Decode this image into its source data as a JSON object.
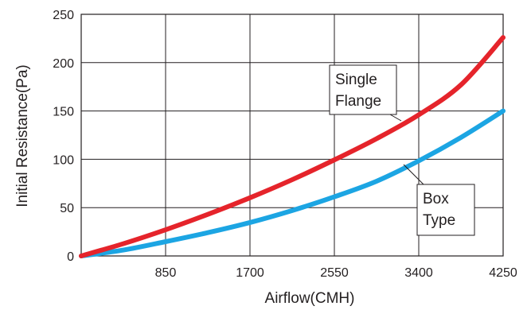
{
  "chart_data": {
    "type": "line",
    "xlabel": "Airflow(CMH)",
    "ylabel": "Initial Resistance(Pa)",
    "xlim": [
      0,
      4250
    ],
    "ylim": [
      0,
      250
    ],
    "x_ticks": [
      "850",
      "1700",
      "2550",
      "3400",
      "4250"
    ],
    "y_ticks": [
      "0",
      "50",
      "100",
      "150",
      "200",
      "250"
    ],
    "grid": true,
    "series": [
      {
        "name": "Single Flange",
        "color": "#e5242b",
        "x": [
          0,
          425,
          850,
          1275,
          1700,
          2125,
          2550,
          2975,
          3400,
          3825,
          4250
        ],
        "y": [
          0,
          12.7,
          27.1,
          43.0,
          60.2,
          78.9,
          99.4,
          121.3,
          146.0,
          177.0,
          226.0
        ]
      },
      {
        "name": "Box Type",
        "color": "#1ca5e3",
        "x": [
          0,
          425,
          850,
          1275,
          1700,
          2125,
          2550,
          2975,
          3400,
          3825,
          4250
        ],
        "y": [
          0,
          6.1,
          14.8,
          24.1,
          34.6,
          47.0,
          61.2,
          77.3,
          98.4,
          122.6,
          150.0
        ]
      }
    ],
    "annotations": [
      {
        "series": "Single Flange",
        "lines": [
          "Single",
          "Flange"
        ]
      },
      {
        "series": "Box Type",
        "lines": [
          "Box",
          "Type"
        ]
      }
    ]
  }
}
